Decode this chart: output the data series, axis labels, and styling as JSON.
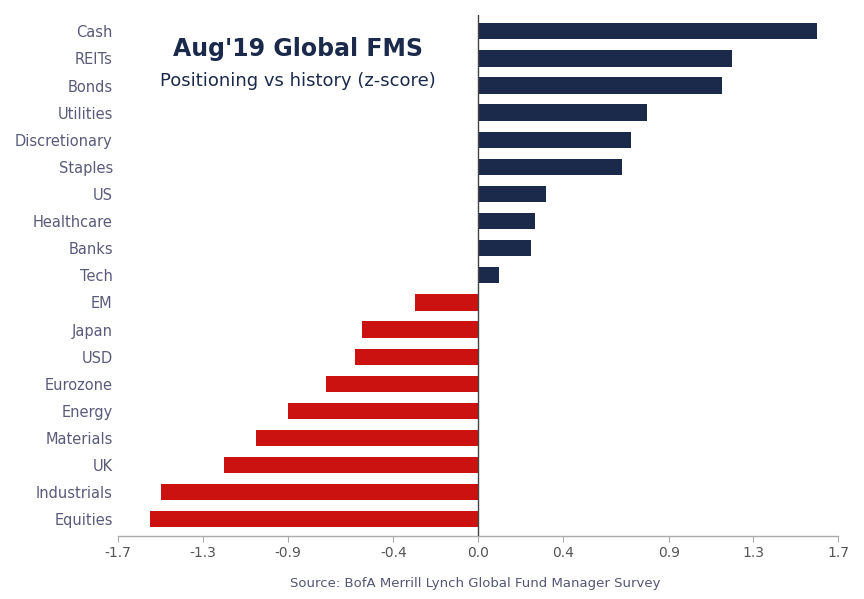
{
  "categories": [
    "Cash",
    "REITs",
    "Bonds",
    "Utilities",
    "Discretionary",
    "Staples",
    "US",
    "Healthcare",
    "Banks",
    "Tech",
    "EM",
    "Japan",
    "USD",
    "Eurozone",
    "Energy",
    "Materials",
    "UK",
    "Industrials",
    "Equities"
  ],
  "values": [
    1.6,
    1.2,
    1.15,
    0.8,
    0.72,
    0.68,
    0.32,
    0.27,
    0.25,
    0.1,
    -0.3,
    -0.55,
    -0.58,
    -0.72,
    -0.9,
    -1.05,
    -1.2,
    -1.5,
    -1.55
  ],
  "positive_color": "#1b2a4a",
  "negative_color": "#cc1111",
  "background_color": "#ffffff",
  "title_line1": "Aug'19 Global FMS",
  "title_line2": "Positioning vs history (z-score)",
  "source_text": "Source: BofA Merrill Lynch Global Fund Manager Survey",
  "xlim": [
    -1.7,
    1.7
  ],
  "xticks": [
    -1.7,
    -1.3,
    -0.9,
    -0.4,
    0.0,
    0.4,
    0.9,
    1.3,
    1.7
  ],
  "xtick_labels": [
    "-1.7",
    "-1.3",
    "-0.9",
    "-0.4",
    "0.0",
    "0.4",
    "0.9",
    "1.3",
    "1.7"
  ],
  "title_fontsize": 17,
  "subtitle_fontsize": 13,
  "label_fontsize": 10.5,
  "tick_fontsize": 10,
  "source_fontsize": 9.5,
  "bar_height": 0.6,
  "label_color": "#5a5a7a",
  "axis_color": "#aaaaaa",
  "title_color": "#1b2a4a"
}
